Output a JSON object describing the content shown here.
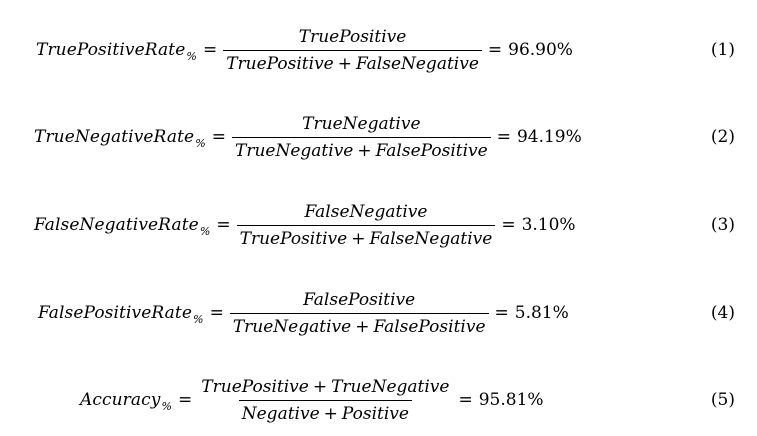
{
  "equations": [
    {
      "lhs": "TruePositiveRate",
      "lhs_sub": "%",
      "equals": "=",
      "numerator": [
        "TruePositive"
      ],
      "denominator": [
        "TruePositive",
        "FalseNegative"
      ],
      "plus": "+",
      "value": "96.90%",
      "number": "(1)"
    },
    {
      "lhs": "TrueNegativeRate",
      "lhs_sub": "%",
      "equals": "=",
      "numerator": [
        "TrueNegative"
      ],
      "denominator": [
        "TrueNegative",
        "FalsePositive"
      ],
      "plus": "+",
      "value": "94.19%",
      "number": "(2)"
    },
    {
      "lhs": "FalseNegativeRate",
      "lhs_sub": "%",
      "equals": "=",
      "numerator": [
        "FalseNegative"
      ],
      "denominator": [
        "TruePositive",
        "FalseNegative"
      ],
      "plus": "+",
      "value": "3.10%",
      "number": "(3)"
    },
    {
      "lhs": "FalsePositiveRate",
      "lhs_sub": "%",
      "equals": "=",
      "numerator": [
        "FalsePositive"
      ],
      "denominator": [
        "TrueNegative",
        "FalsePositive"
      ],
      "plus": "+",
      "value": "5.81%",
      "number": "(4)"
    },
    {
      "lhs": "Accuracy",
      "lhs_sub": "%",
      "equals": "=",
      "numerator": [
        "TruePositive",
        "TrueNegative"
      ],
      "denominator": [
        "Negative",
        "Positive"
      ],
      "plus": "+",
      "value": "95.81%",
      "number": "(5)"
    }
  ]
}
